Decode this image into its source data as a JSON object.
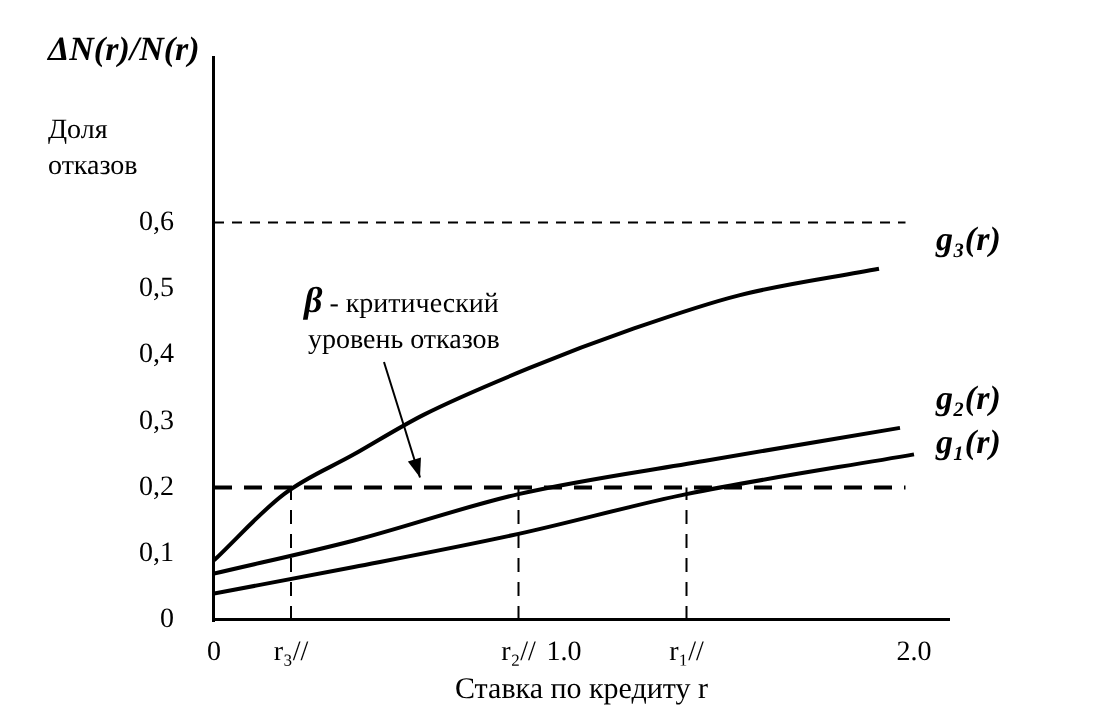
{
  "chart_data": {
    "type": "line",
    "xlabel": "Ставка по кредиту r",
    "ylabel": "ΔN(r)/N(r)",
    "annotations": [
      "Доля отказов",
      "β - критический уровень отказов"
    ],
    "series": [
      {
        "name": "g₃(r)",
        "color": "#000000",
        "x": [
          0,
          0.2,
          0.4,
          0.6,
          0.9,
          1.2,
          1.5,
          1.9
        ],
        "values": [
          0.09,
          0.19,
          0.25,
          0.31,
          0.38,
          0.44,
          0.49,
          0.53
        ]
      },
      {
        "name": "g₂(r)",
        "color": "#000000",
        "x": [
          0,
          0.4,
          0.87,
          1.4,
          1.96
        ],
        "values": [
          0.07,
          0.12,
          0.19,
          0.24,
          0.29
        ]
      },
      {
        "name": "g₁(r)",
        "color": "#000000",
        "x": [
          0,
          0.4,
          0.87,
          1.35,
          2.0
        ],
        "values": [
          0.04,
          0.08,
          0.13,
          0.19,
          0.25
        ]
      }
    ],
    "xlim": [
      0,
      2.1
    ],
    "ylim": [
      0,
      0.85
    ],
    "xticks": [
      0,
      {
        "value": 0.22,
        "label": "r₃//"
      },
      {
        "value": 0.87,
        "label": "r₂//"
      },
      {
        "value": 1.0,
        "label": "1.0"
      },
      {
        "value": 1.35,
        "label": "r₁//"
      },
      {
        "value": 2.0,
        "label": "2.0"
      }
    ],
    "yticks": [
      {
        "value": 0,
        "label": "0"
      },
      {
        "value": 0.1,
        "label": "0,1"
      },
      {
        "value": 0.2,
        "label": "0,2"
      },
      {
        "value": 0.3,
        "label": "0,3"
      },
      {
        "value": 0.4,
        "label": "0,4"
      },
      {
        "value": 0.5,
        "label": "0,5"
      },
      {
        "value": 0.6,
        "label": "0,6"
      }
    ],
    "ref_lines": [
      {
        "axis": "y",
        "value": 0.6,
        "line_style": "dashed"
      },
      {
        "axis": "y",
        "value": 0.2,
        "line_style": "dashed"
      },
      {
        "axis": "x",
        "value": 0.22,
        "line_style": "dashed"
      },
      {
        "axis": "x",
        "value": 0.87,
        "line_style": "dashed"
      },
      {
        "axis": "x",
        "value": 1.35,
        "line_style": "dashed"
      }
    ],
    "grid": false,
    "legend": false,
    "marker": "none",
    "line_style": "solid"
  }
}
